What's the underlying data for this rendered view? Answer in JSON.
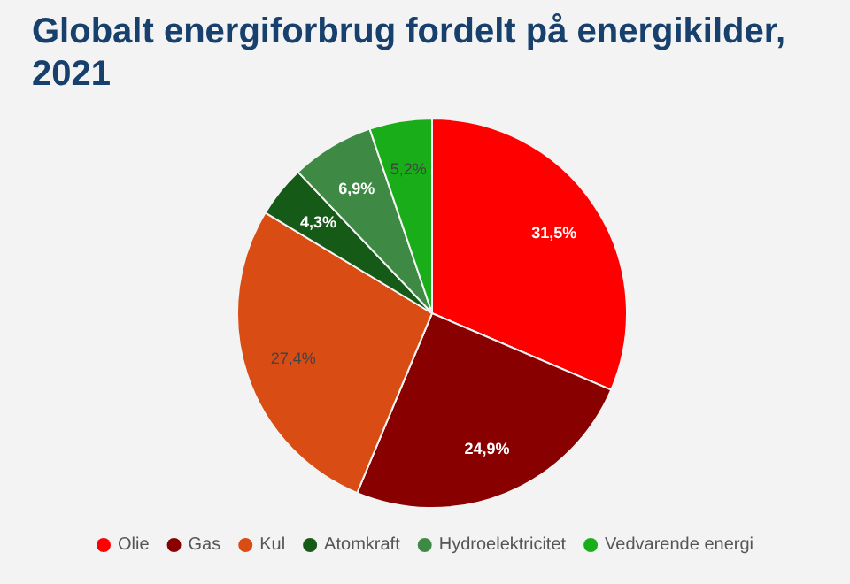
{
  "chart_data": {
    "type": "pie",
    "title": "Globalt energiforbrug fordelt på energikilder, 2021",
    "categories": [
      "Olie",
      "Gas",
      "Kul",
      "Atomkraft",
      "Hydroelektricitet",
      "Vedvarende energi"
    ],
    "values": [
      31.5,
      24.9,
      27.4,
      4.3,
      6.9,
      5.2
    ],
    "value_labels": [
      "31,5%",
      "24,9%",
      "27,4%",
      "4,3%",
      "6,9%",
      "5,2%"
    ],
    "colors": [
      "#ff0000",
      "#880000",
      "#d94c14",
      "#155a17",
      "#3e8a45",
      "#1aad1a"
    ],
    "legend": "bottom"
  }
}
